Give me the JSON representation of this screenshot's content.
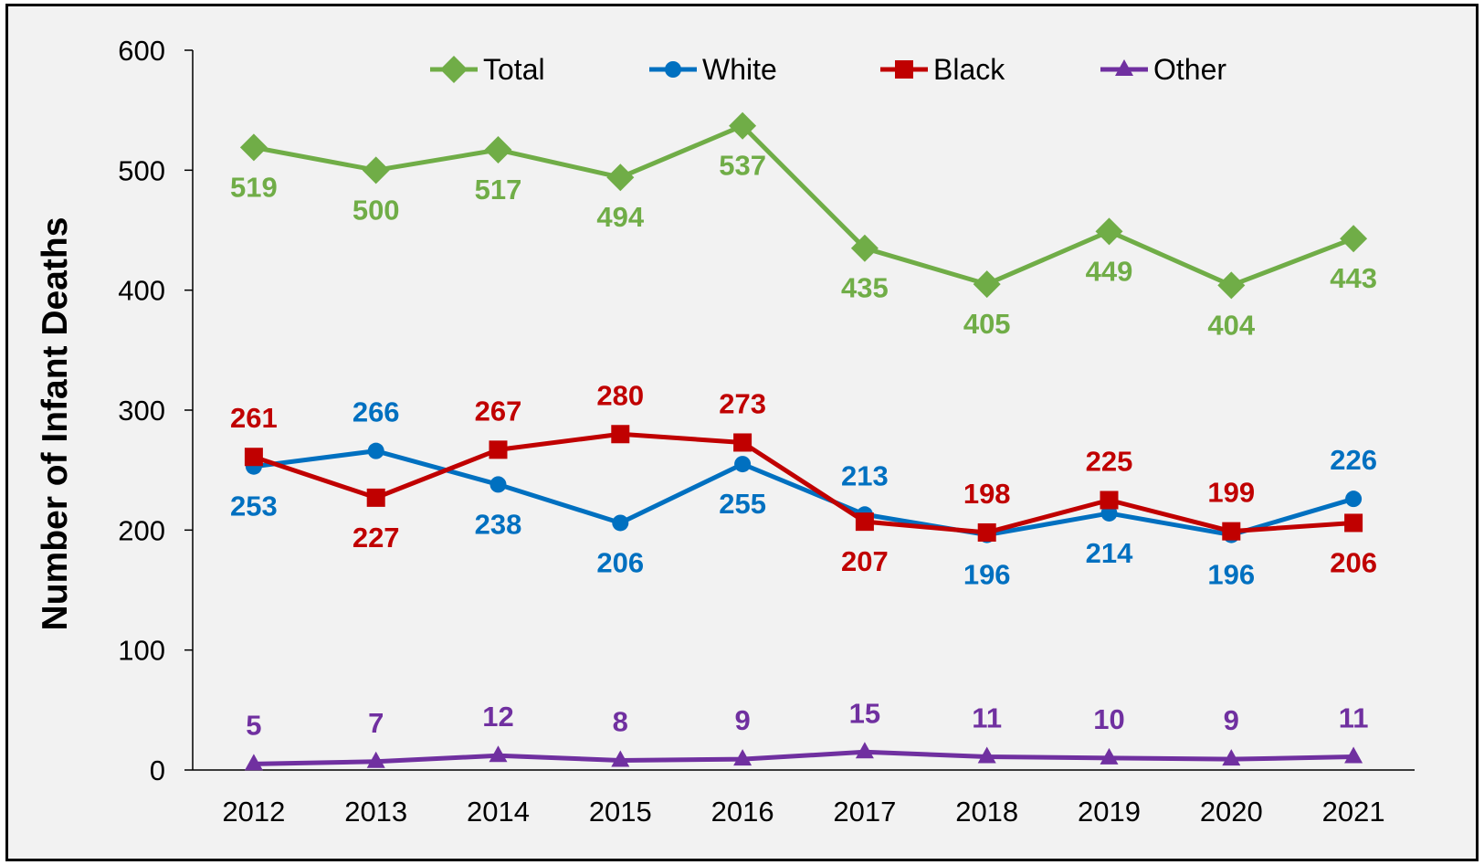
{
  "chart_data": {
    "type": "line",
    "title": "",
    "xlabel": "",
    "ylabel": "Number of Infant Deaths",
    "categories": [
      "2012",
      "2013",
      "2014",
      "2015",
      "2016",
      "2017",
      "2018",
      "2019",
      "2020",
      "2021"
    ],
    "ylim": [
      0,
      600
    ],
    "yticks": [
      "0",
      "100",
      "200",
      "300",
      "400",
      "500",
      "600"
    ],
    "grid": false,
    "legend_position": "top",
    "series": [
      {
        "name": "Total",
        "color": "#70ad47",
        "marker": "diamond",
        "values": [
          519,
          500,
          517,
          494,
          537,
          435,
          405,
          449,
          404,
          443
        ],
        "labels": [
          "519",
          "500",
          "517",
          "494",
          "537",
          "435",
          "405",
          "449",
          "404",
          "443"
        ]
      },
      {
        "name": "White",
        "color": "#0070c0",
        "marker": "circle",
        "values": [
          253,
          266,
          238,
          206,
          255,
          213,
          196,
          214,
          196,
          226
        ],
        "labels": [
          "253",
          "266",
          "238",
          "206",
          "255",
          "213",
          "196",
          "214",
          "196",
          "226"
        ]
      },
      {
        "name": "Black",
        "color": "#c00000",
        "marker": "square",
        "values": [
          261,
          227,
          267,
          280,
          273,
          207,
          198,
          225,
          199,
          206
        ],
        "labels": [
          "261",
          "227",
          "267",
          "280",
          "273",
          "207",
          "198",
          "225",
          "199",
          "206"
        ]
      },
      {
        "name": "Other",
        "color": "#7030a0",
        "marker": "triangle",
        "values": [
          5,
          7,
          12,
          8,
          9,
          15,
          11,
          10,
          9,
          11
        ],
        "labels": [
          "5",
          "7",
          "12",
          "8",
          "9",
          "15",
          "11",
          "10",
          "9",
          "11"
        ]
      }
    ]
  }
}
